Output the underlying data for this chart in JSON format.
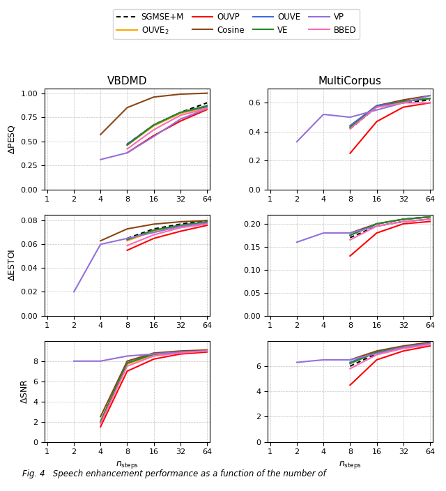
{
  "x_steps": [
    1,
    2,
    4,
    8,
    16,
    32,
    64
  ],
  "legend": {
    "SGMSE+M": {
      "color": "#000000",
      "linestyle": "dotted",
      "linewidth": 1.5
    },
    "OUVE_2": {
      "color": "#FFA500",
      "linestyle": "solid",
      "linewidth": 1.5
    },
    "OUVP": {
      "color": "#FF0000",
      "linestyle": "solid",
      "linewidth": 1.5
    },
    "Cosine": {
      "color": "#8B4513",
      "linestyle": "solid",
      "linewidth": 1.5
    },
    "OUVE": {
      "color": "#4169E1",
      "linestyle": "solid",
      "linewidth": 1.5
    },
    "VE": {
      "color": "#228B22",
      "linestyle": "solid",
      "linewidth": 1.5
    },
    "VP": {
      "color": "#9370DB",
      "linestyle": "solid",
      "linewidth": 1.5
    },
    "BBED": {
      "color": "#FF69B4",
      "linestyle": "solid",
      "linewidth": 1.5
    }
  },
  "VBDMD": {
    "PESQ": {
      "SGMSE+M": [
        null,
        null,
        null,
        0.47,
        0.67,
        0.8,
        0.9
      ],
      "OUVE_2": [
        null,
        null,
        null,
        0.46,
        0.66,
        0.79,
        0.85
      ],
      "OUVP": [
        null,
        null,
        null,
        0.38,
        0.56,
        0.71,
        0.83
      ],
      "Cosine": [
        null,
        null,
        0.57,
        0.85,
        0.96,
        0.99,
        1.0
      ],
      "OUVE": [
        null,
        null,
        null,
        0.47,
        0.67,
        0.8,
        0.86
      ],
      "VE": [
        null,
        null,
        null,
        0.46,
        0.67,
        0.8,
        0.87
      ],
      "VP": [
        null,
        null,
        0.31,
        0.38,
        0.55,
        0.73,
        0.84
      ],
      "BBED": [
        null,
        null,
        null,
        0.42,
        0.62,
        0.77,
        0.84
      ]
    },
    "ylim_PESQ": [
      0.0,
      1.05
    ],
    "yticks_PESQ": [
      0.0,
      0.25,
      0.5,
      0.75,
      1.0
    ],
    "ESTOI": {
      "SGMSE+M": [
        null,
        null,
        null,
        0.065,
        0.073,
        0.077,
        0.08
      ],
      "OUVE_2": [
        null,
        null,
        null,
        0.063,
        0.071,
        0.075,
        0.078
      ],
      "OUVP": [
        null,
        null,
        null,
        0.055,
        0.065,
        0.071,
        0.076
      ],
      "Cosine": [
        null,
        null,
        0.063,
        0.073,
        0.077,
        0.079,
        0.08
      ],
      "OUVE": [
        null,
        null,
        null,
        0.064,
        0.072,
        0.076,
        0.079
      ],
      "VE": [
        null,
        null,
        null,
        0.064,
        0.072,
        0.076,
        0.079
      ],
      "VP": [
        null,
        0.02,
        0.06,
        0.065,
        0.07,
        0.075,
        0.078
      ],
      "BBED": [
        null,
        null,
        null,
        0.059,
        0.068,
        0.074,
        0.077
      ]
    },
    "ylim_ESTOI": [
      0.0,
      0.085
    ],
    "yticks_ESTOI": [
      0.0,
      0.02,
      0.04,
      0.06,
      0.08
    ],
    "SNR": {
      "SGMSE+M": [
        null,
        null,
        2.0,
        7.8,
        8.7,
        8.9,
        9.0
      ],
      "OUVE_2": [
        null,
        null,
        2.0,
        7.7,
        8.6,
        8.9,
        9.0
      ],
      "OUVP": [
        null,
        null,
        1.5,
        7.0,
        8.2,
        8.7,
        8.9
      ],
      "Cosine": [
        null,
        null,
        2.5,
        8.0,
        8.8,
        9.0,
        9.1
      ],
      "OUVE": [
        null,
        null,
        2.0,
        7.8,
        8.7,
        8.9,
        9.0
      ],
      "VE": [
        null,
        null,
        2.0,
        7.8,
        8.7,
        8.9,
        9.0
      ],
      "VP": [
        null,
        8.0,
        8.0,
        8.5,
        8.7,
        8.9,
        9.0
      ],
      "BBED": [
        null,
        null,
        1.8,
        7.5,
        8.5,
        8.8,
        9.0
      ]
    },
    "ylim_SNR": [
      0,
      10
    ],
    "yticks_SNR": [
      0,
      2,
      4,
      6,
      8
    ]
  },
  "MultiCorpus": {
    "PESQ": {
      "SGMSE+M": [
        null,
        null,
        null,
        0.42,
        0.57,
        0.6,
        0.62
      ],
      "OUVE_2": [
        null,
        null,
        null,
        0.43,
        0.57,
        0.61,
        0.63
      ],
      "OUVP": [
        null,
        null,
        null,
        0.25,
        0.47,
        0.57,
        0.6
      ],
      "Cosine": [
        null,
        null,
        null,
        0.44,
        0.58,
        0.62,
        0.65
      ],
      "OUVE": [
        null,
        null,
        null,
        0.44,
        0.58,
        0.61,
        0.63
      ],
      "VE": [
        null,
        null,
        null,
        0.43,
        0.57,
        0.61,
        0.63
      ],
      "VP": [
        null,
        0.33,
        0.52,
        0.5,
        0.55,
        0.6,
        0.65
      ],
      "BBED": [
        null,
        null,
        null,
        0.42,
        0.57,
        0.6,
        0.6
      ]
    },
    "ylim_PESQ": [
      0.0,
      0.7
    ],
    "yticks_PESQ": [
      0.0,
      0.2,
      0.4,
      0.6
    ],
    "ESTOI": {
      "SGMSE+M": [
        null,
        null,
        null,
        0.17,
        0.195,
        0.205,
        0.21
      ],
      "OUVE_2": [
        null,
        null,
        null,
        0.175,
        0.2,
        0.21,
        0.215
      ],
      "OUVP": [
        null,
        null,
        null,
        0.13,
        0.18,
        0.2,
        0.205
      ],
      "Cosine": [
        null,
        null,
        null,
        0.18,
        0.2,
        0.21,
        0.215
      ],
      "OUVE": [
        null,
        null,
        null,
        0.175,
        0.2,
        0.21,
        0.215
      ],
      "VE": [
        null,
        null,
        null,
        0.175,
        0.2,
        0.21,
        0.215
      ],
      "VP": [
        null,
        0.16,
        0.18,
        0.18,
        0.195,
        0.205,
        0.21
      ],
      "BBED": [
        null,
        null,
        null,
        0.165,
        0.195,
        0.205,
        0.21
      ]
    },
    "ylim_ESTOI": [
      0.0,
      0.22
    ],
    "yticks_ESTOI": [
      0.0,
      0.05,
      0.1,
      0.15,
      0.2
    ],
    "SNR": {
      "SGMSE+M": [
        null,
        null,
        null,
        6.0,
        7.0,
        7.5,
        7.8
      ],
      "OUVE_2": [
        null,
        null,
        null,
        6.3,
        7.1,
        7.5,
        7.8
      ],
      "OUVP": [
        null,
        null,
        null,
        4.5,
        6.5,
        7.2,
        7.6
      ],
      "Cosine": [
        null,
        null,
        null,
        6.5,
        7.2,
        7.6,
        7.9
      ],
      "OUVE": [
        null,
        null,
        null,
        6.3,
        7.1,
        7.5,
        7.8
      ],
      "VE": [
        null,
        null,
        null,
        6.2,
        7.1,
        7.5,
        7.8
      ],
      "VP": [
        null,
        6.3,
        6.5,
        6.5,
        7.0,
        7.5,
        7.8
      ],
      "BBED": [
        null,
        null,
        null,
        5.8,
        6.9,
        7.4,
        7.7
      ]
    },
    "ylim_SNR": [
      0,
      8
    ],
    "yticks_SNR": [
      0,
      2,
      4,
      6
    ]
  },
  "col_titles": [
    "VBDMD",
    "MultiCorpus"
  ],
  "row_metrics": [
    "ΔPESQ",
    "ΔESTOI",
    "ΔSNR"
  ],
  "x_label": "n_steps",
  "x_ticks": [
    1,
    2,
    4,
    8,
    16,
    32,
    64
  ],
  "figure_caption": "Fig. 4   Speech enhancement performance as a function of the number of",
  "background_color": "#ffffff"
}
